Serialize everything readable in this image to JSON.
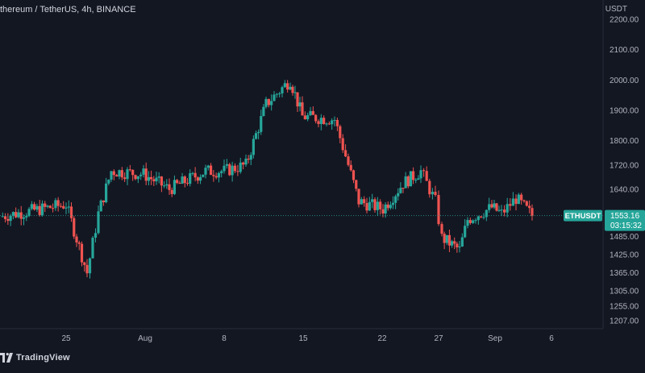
{
  "header": {
    "symbol_title": "thereum / TetherUS, 4h, BINANCE",
    "currency": "USDT"
  },
  "footer": {
    "brand": "TradingView"
  },
  "colors": {
    "background": "#131722",
    "up": "#26a69a",
    "down": "#ef5350",
    "axis_text": "#b2b5be",
    "last_price_badge": "#26a69a"
  },
  "chart_data": {
    "type": "candlestick",
    "title": "thereum / TetherUS, 4h, BINANCE",
    "y_axis_unit": "USDT",
    "y_ticks": [
      1207.0,
      1255.0,
      1305.0,
      1365.0,
      1425.0,
      1485.0,
      1640.0,
      1720.0,
      1800.0,
      1900.0,
      2000.0,
      2100.0,
      2200.0
    ],
    "x_ticks": [
      "25",
      "Aug",
      "8",
      "15",
      "22",
      "27",
      "Sep",
      "6"
    ],
    "ylim": [
      1190,
      2225
    ],
    "grid": false,
    "last_price": {
      "symbol": "ETHUSDT",
      "price": "1553.16",
      "countdown": "03:15:32"
    },
    "approx_path": [
      {
        "x": "start",
        "close": 1550
      },
      {
        "x": "25",
        "close": 1590
      },
      {
        "x": "~26",
        "close": 1365
      },
      {
        "x": "~27",
        "close": 1560
      },
      {
        "x": "~28",
        "close": 1700
      },
      {
        "x": "Aug",
        "close": 1690
      },
      {
        "x": "~4",
        "close": 1640
      },
      {
        "x": "~6",
        "close": 1700
      },
      {
        "x": "8",
        "close": 1700
      },
      {
        "x": "~10",
        "close": 1720
      },
      {
        "x": "~12",
        "close": 1920
      },
      {
        "x": "~14",
        "close": 2000
      },
      {
        "x": "15",
        "close": 1880
      },
      {
        "x": "~18",
        "close": 1870
      },
      {
        "x": "~19",
        "close": 1720
      },
      {
        "x": "~20",
        "close": 1600
      },
      {
        "x": "22",
        "close": 1575
      },
      {
        "x": "~24",
        "close": 1660
      },
      {
        "x": "~26",
        "close": 1700
      },
      {
        "x": "27",
        "close": 1600
      },
      {
        "x": "~28",
        "close": 1480
      },
      {
        "x": "~30",
        "close": 1440
      },
      {
        "x": "~31",
        "close": 1540
      },
      {
        "x": "Sep",
        "close": 1580
      },
      {
        "x": "~2",
        "close": 1560
      },
      {
        "x": "~3",
        "close": 1610
      },
      {
        "x": "end",
        "close": 1553.16
      }
    ]
  }
}
